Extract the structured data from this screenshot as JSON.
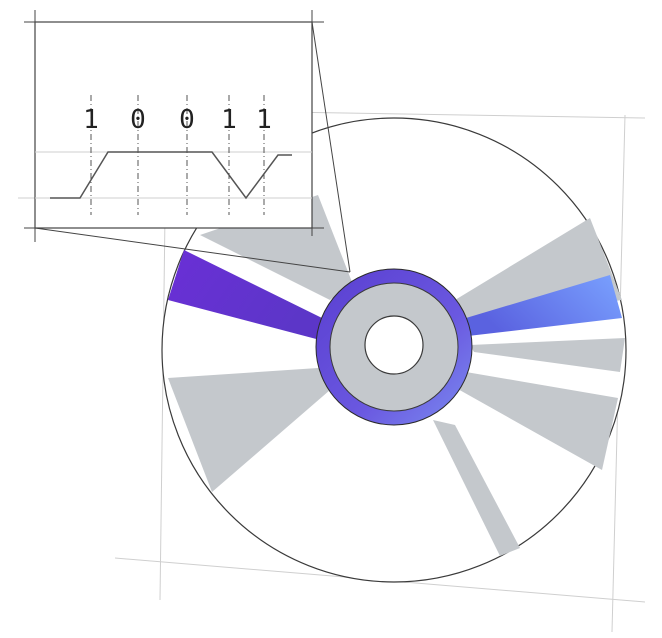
{
  "illustration": {
    "subject": "optical-disc",
    "bits": [
      "1",
      "0",
      "0",
      "1",
      "1"
    ],
    "colors": {
      "background": "#ffffff",
      "disc_outline": "#3a3a3a",
      "reflection_gray": "#c4c8cc",
      "hub_ring": "#6a58e0",
      "violet_wedge": "#6a2fd6",
      "blue_wedge": "#7aa2ff",
      "construction_lines": "#cfcfcf",
      "zoom_box_lines": "#444444",
      "signal_line": "#555555"
    }
  }
}
